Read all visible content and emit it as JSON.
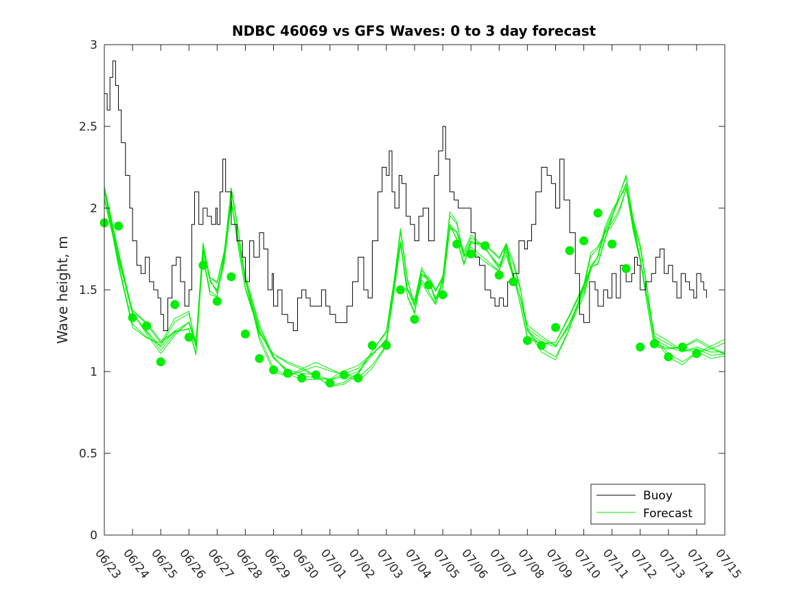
{
  "chart_data": {
    "type": "line",
    "title": "NDBC 46069 vs GFS Waves: 0 to 3 day forecast",
    "xlabel": "",
    "ylabel": "Wave height, m",
    "ylim": [
      0,
      3
    ],
    "yticks": [
      "0",
      "0.5",
      "1",
      "1.5",
      "2",
      "2.5",
      "3"
    ],
    "xlim_days": [
      0,
      22
    ],
    "xtick_labels": [
      "06/23",
      "06/24",
      "06/25",
      "06/26",
      "06/27",
      "06/28",
      "06/29",
      "06/30",
      "07/01",
      "07/02",
      "07/03",
      "07/04",
      "07/05",
      "07/06",
      "07/07",
      "07/08",
      "07/09",
      "07/10",
      "07/11",
      "07/12",
      "07/13",
      "07/14",
      "07/15"
    ],
    "grid": false,
    "legend_position": "bottom-right",
    "colors": {
      "buoy": "#000000",
      "forecast": "#00ee00",
      "axes": "#262626"
    },
    "series": [
      {
        "name": "Buoy",
        "x": [
          0,
          0.1,
          0.2,
          0.3,
          0.4,
          0.5,
          0.6,
          0.75,
          0.9,
          1.0,
          1.15,
          1.3,
          1.45,
          1.6,
          1.75,
          1.9,
          2.0,
          2.1,
          2.25,
          2.4,
          2.55,
          2.7,
          2.85,
          3.0,
          3.1,
          3.2,
          3.35,
          3.5,
          3.65,
          3.8,
          3.95,
          4.0,
          4.1,
          4.2,
          4.3,
          4.5,
          4.7,
          4.9,
          5.0,
          5.15,
          5.3,
          5.5,
          5.65,
          5.8,
          5.95,
          6.0,
          6.15,
          6.3,
          6.5,
          6.7,
          6.85,
          7.0,
          7.15,
          7.3,
          7.5,
          7.7,
          7.85,
          8.0,
          8.2,
          8.4,
          8.6,
          8.8,
          9.0,
          9.2,
          9.35,
          9.5,
          9.7,
          9.85,
          10.0,
          10.1,
          10.2,
          10.3,
          10.45,
          10.55,
          10.7,
          10.85,
          11.0,
          11.15,
          11.3,
          11.5,
          11.7,
          11.85,
          12.0,
          12.1,
          12.25,
          12.4,
          12.55,
          12.7,
          12.85,
          13.0,
          13.15,
          13.3,
          13.5,
          13.7,
          13.85,
          14.0,
          14.15,
          14.3,
          14.5,
          14.7,
          14.9,
          15.0,
          15.15,
          15.3,
          15.5,
          15.7,
          15.85,
          16.0,
          16.15,
          16.3,
          16.5,
          16.7,
          16.85,
          17.0,
          17.2,
          17.4,
          17.5,
          17.7,
          17.85,
          18.0,
          18.15,
          18.3,
          18.5,
          18.7,
          18.8,
          18.9,
          19.0,
          19.2,
          19.4,
          19.55,
          19.7,
          19.85,
          20.0,
          20.15,
          20.3,
          20.45,
          20.6,
          20.75,
          20.9,
          21.0,
          21.15,
          21.25,
          21.35
        ],
        "values": [
          2.7,
          2.6,
          2.8,
          2.9,
          2.75,
          2.6,
          2.4,
          2.2,
          2.0,
          1.8,
          1.65,
          1.6,
          1.7,
          1.55,
          1.5,
          1.45,
          1.35,
          1.25,
          1.45,
          1.65,
          1.7,
          1.55,
          1.4,
          1.5,
          1.9,
          2.1,
          1.9,
          2.0,
          1.95,
          1.9,
          2.0,
          1.9,
          2.1,
          2.3,
          2.1,
          1.9,
          1.8,
          1.7,
          1.55,
          1.8,
          1.7,
          1.85,
          1.75,
          1.5,
          1.6,
          1.4,
          1.5,
          1.35,
          1.3,
          1.25,
          1.45,
          1.5,
          1.45,
          1.4,
          1.4,
          1.5,
          1.4,
          1.35,
          1.3,
          1.3,
          1.4,
          1.55,
          1.7,
          1.5,
          1.45,
          1.8,
          2.1,
          2.25,
          2.2,
          2.35,
          2.1,
          2.0,
          2.2,
          2.15,
          1.95,
          1.9,
          1.8,
          1.95,
          2.0,
          1.8,
          2.2,
          2.35,
          2.5,
          2.3,
          2.1,
          2.05,
          2.0,
          2.0,
          2.0,
          1.85,
          1.7,
          1.65,
          1.5,
          1.45,
          1.4,
          1.45,
          1.4,
          1.55,
          1.6,
          1.8,
          1.75,
          1.8,
          1.9,
          2.1,
          2.25,
          2.2,
          2.15,
          2.0,
          2.3,
          2.05,
          1.85,
          1.6,
          1.35,
          1.3,
          1.55,
          1.5,
          1.4,
          1.5,
          1.45,
          1.6,
          1.45,
          1.65,
          1.55,
          1.6,
          1.7,
          1.65,
          1.5,
          1.55,
          1.6,
          1.7,
          1.75,
          1.6,
          1.65,
          1.55,
          1.45,
          1.6,
          1.55,
          1.5,
          1.45,
          1.6,
          1.55,
          1.5,
          1.45
        ]
      },
      {
        "name": "Forecast",
        "x": [
          0,
          0.5,
          1.0,
          1.5,
          2.0,
          2.5,
          3.0,
          3.25,
          3.5,
          3.75,
          4.0,
          4.25,
          4.5,
          4.75,
          5.0,
          5.5,
          6.0,
          6.5,
          7.0,
          7.5,
          8.0,
          8.5,
          9.0,
          9.5,
          10.0,
          10.25,
          10.5,
          10.75,
          11.0,
          11.25,
          11.5,
          11.75,
          12.0,
          12.25,
          12.5,
          12.75,
          13.0,
          13.5,
          14.0,
          14.25,
          14.5,
          14.75,
          15.0,
          15.5,
          16.0,
          16.5,
          17.0,
          17.25,
          17.5,
          17.75,
          18.0,
          18.25,
          18.5,
          18.75,
          19.0,
          19.25,
          19.5,
          20.0,
          20.5,
          21.0,
          21.5,
          22.0
        ],
        "values": [
          2.1,
          1.7,
          1.35,
          1.25,
          1.15,
          1.25,
          1.3,
          1.15,
          1.75,
          1.55,
          1.5,
          1.7,
          2.05,
          1.8,
          1.55,
          1.25,
          1.08,
          1.01,
          0.99,
          0.98,
          0.95,
          0.97,
          1.0,
          1.1,
          1.2,
          1.5,
          1.8,
          1.5,
          1.4,
          1.6,
          1.55,
          1.45,
          1.55,
          1.9,
          1.85,
          1.7,
          1.8,
          1.75,
          1.65,
          1.75,
          1.6,
          1.45,
          1.25,
          1.18,
          1.15,
          1.3,
          1.5,
          1.65,
          1.7,
          1.85,
          1.95,
          2.05,
          2.15,
          1.9,
          1.7,
          1.45,
          1.2,
          1.15,
          1.12,
          1.15,
          1.12,
          1.12
        ]
      }
    ],
    "forecast_points": {
      "x": [
        0,
        0.5,
        1,
        1.5,
        2,
        2.5,
        3,
        3.5,
        4,
        4.5,
        5,
        5.5,
        6,
        6.5,
        7,
        7.5,
        8,
        8.5,
        9,
        9.5,
        10,
        10.5,
        11,
        11.5,
        12,
        12.5,
        13,
        13.5,
        14,
        14.5,
        15,
        15.5,
        16,
        16.5,
        17,
        17.5,
        18,
        18.5,
        19,
        19.5,
        20,
        20.5,
        21
      ],
      "values": [
        1.91,
        1.89,
        1.33,
        1.28,
        1.06,
        1.41,
        1.21,
        1.65,
        1.43,
        1.58,
        1.23,
        1.08,
        1.01,
        0.99,
        0.96,
        0.98,
        0.93,
        0.98,
        0.96,
        1.16,
        1.16,
        1.5,
        1.32,
        1.53,
        1.47,
        1.78,
        1.72,
        1.77,
        1.59,
        1.55,
        1.19,
        1.16,
        1.27,
        1.74,
        1.8,
        1.97,
        1.78,
        1.63,
        1.15,
        1.17,
        1.09,
        1.15,
        1.11
      ]
    },
    "legend": [
      "Buoy",
      "Forecast"
    ]
  }
}
